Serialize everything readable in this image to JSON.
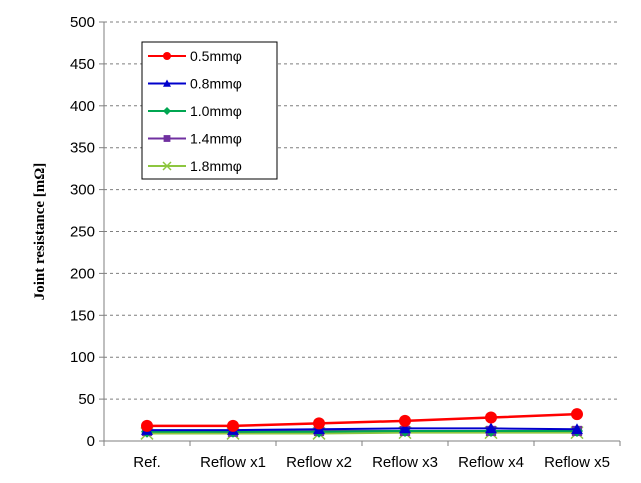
{
  "chart_data": {
    "type": "line",
    "ylabel": "Joint resistance [mΩ]",
    "xlabel": "",
    "categories": [
      "Ref.",
      "Reflow x1",
      "Reflow x2",
      "Reflow x3",
      "Reflow x4",
      "Reflow x5"
    ],
    "ylim": [
      0,
      500
    ],
    "yticks": [
      0,
      50,
      100,
      150,
      200,
      250,
      300,
      350,
      400,
      450,
      500
    ],
    "grid": "horizontal dashed",
    "legend_position": "top-left",
    "series": [
      {
        "name": "0.5mmφ",
        "color": "#ff0000",
        "marker": "circle",
        "values": [
          18,
          18,
          21,
          24,
          28,
          32
        ]
      },
      {
        "name": "0.8mmφ",
        "color": "#0000cc",
        "marker": "triangle",
        "values": [
          13,
          13,
          14,
          15,
          15,
          14
        ]
      },
      {
        "name": "1.0mmφ",
        "color": "#00a651",
        "marker": "diamond",
        "values": [
          11,
          11,
          11,
          12,
          12,
          12
        ]
      },
      {
        "name": "1.4mmφ",
        "color": "#7030a0",
        "marker": "square",
        "values": [
          12,
          11,
          12,
          12,
          12,
          12
        ]
      },
      {
        "name": "1.8mmφ",
        "color": "#8dc63f",
        "marker": "x",
        "values": [
          9,
          9,
          9,
          10,
          10,
          10
        ]
      }
    ]
  }
}
